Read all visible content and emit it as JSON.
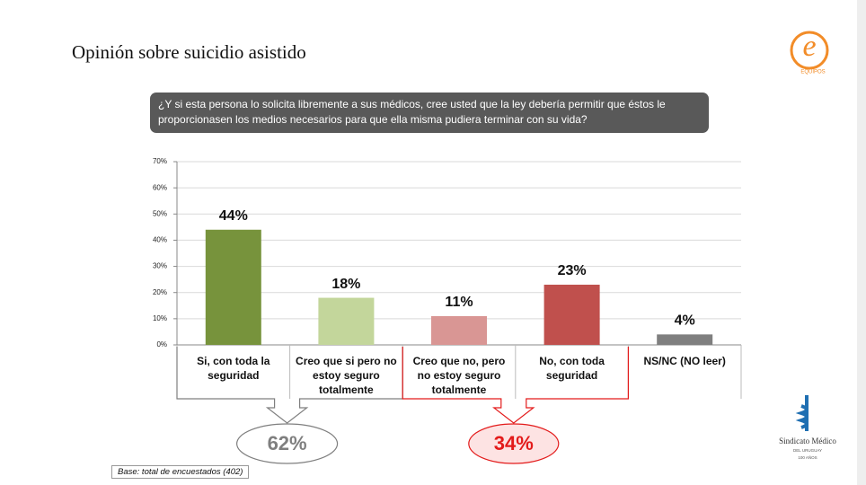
{
  "chart_data": {
    "type": "bar",
    "title": "Opinión sobre suicidio asistido",
    "question": "¿Y si esta persona lo solicita libremente a sus médicos, cree usted que la ley debería permitir que éstos le proporcionasen los medios necesarios para que ella misma pudiera terminar con su vida?",
    "categories": [
      "Si, con toda la seguridad",
      "Creo que si pero no estoy seguro totalmente",
      "Creo que no, pero no estoy seguro totalmente",
      "No, con toda seguridad",
      "NS/NC (NO leer)"
    ],
    "values": [
      44,
      18,
      11,
      23,
      4
    ],
    "value_labels": [
      "44%",
      "18%",
      "11%",
      "23%",
      "4%"
    ],
    "colors": [
      "#77933c",
      "#c3d69b",
      "#d99694",
      "#c0504d",
      "#7f7f7f"
    ],
    "ylim": [
      0,
      70
    ],
    "yticks": [
      {
        "value": 0,
        "label": "0%"
      },
      {
        "value": 10,
        "label": "10%"
      },
      {
        "value": 20,
        "label": "20%"
      },
      {
        "value": 30,
        "label": "30%"
      },
      {
        "value": 40,
        "label": "40%"
      },
      {
        "value": 50,
        "label": "50%"
      },
      {
        "value": 60,
        "label": "60%"
      },
      {
        "value": 70,
        "label": "70%"
      }
    ],
    "grid": true,
    "groups": [
      {
        "value": 62,
        "label": "62%",
        "color": "#7f7f7f"
      },
      {
        "value": 34,
        "label": "34%",
        "color": "#e31b1b"
      }
    ],
    "note": "Base: total de encuestados (402)"
  },
  "logos": {
    "top": "EQUIPOS",
    "bottom": [
      "Sindicato Médico",
      "DEL URUGUAY",
      "100 AÑOS"
    ]
  }
}
